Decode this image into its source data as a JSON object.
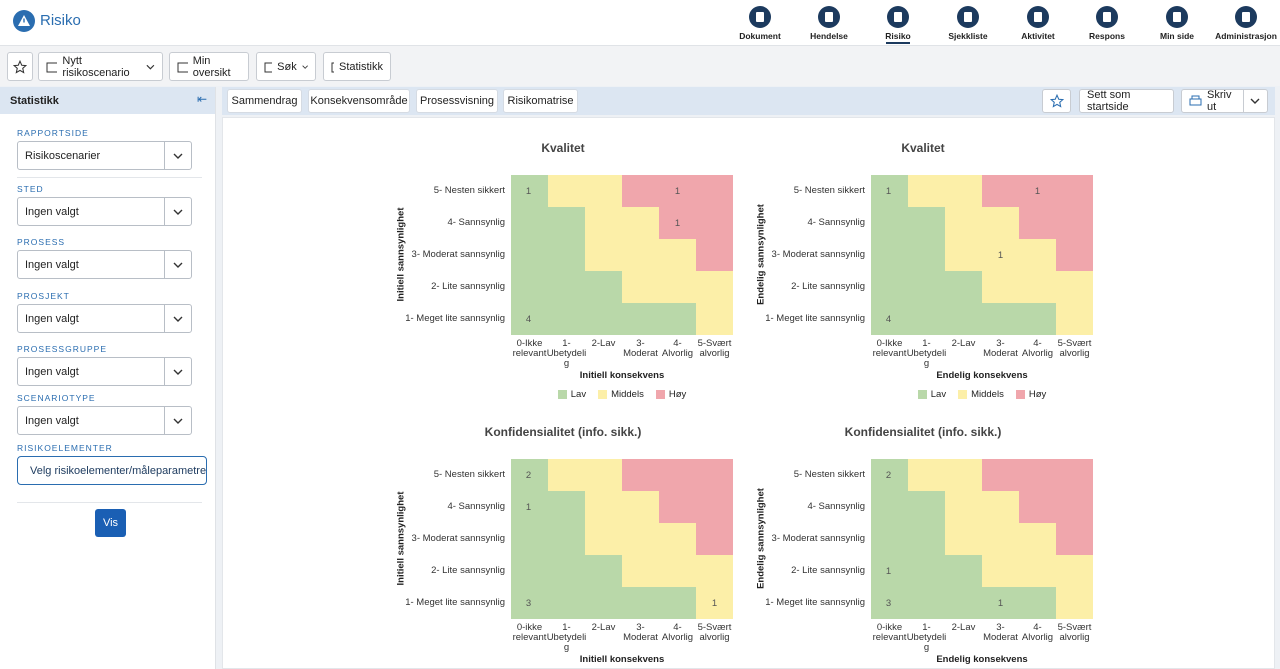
{
  "header": {
    "app_name": "Risiko",
    "nav": [
      "Dokument",
      "Hendelse",
      "Risiko",
      "Sjekkliste",
      "Aktivitet",
      "Respons",
      "Min side",
      "Administrasjon"
    ]
  },
  "toolbar": {
    "buttons": [
      "Nytt risikoscenario",
      "Min oversikt",
      "Søk",
      "Statistikk"
    ]
  },
  "sidebar": {
    "title": "Statistikk",
    "filters": [
      {
        "label": "RAPPORTSIDE",
        "value": "Risikoscenarier"
      },
      {
        "label": "STED",
        "value": "Ingen valgt"
      },
      {
        "label": "PROSESS",
        "value": "Ingen valgt"
      },
      {
        "label": "PROSJEKT",
        "value": "Ingen valgt"
      },
      {
        "label": "PROSESSGRUPPE",
        "value": "Ingen valgt"
      },
      {
        "label": "SCENARIOTYPE",
        "value": "Ingen valgt"
      }
    ],
    "elements_label": "RISIKOELEMENTER",
    "elements_button": "Velg risikoelementer/måleparametre",
    "submit": "Vis"
  },
  "tabs": [
    "Sammendrag",
    "Konsekvensområde",
    "Prosessvisning",
    "Risikomatrise"
  ],
  "actions": [
    "Sett som startside",
    "Skriv ut"
  ],
  "legend": [
    {
      "name": "Lav",
      "color": "#b9d8a9"
    },
    {
      "name": "Middels",
      "color": "#fcefa8"
    },
    {
      "name": "Høy",
      "color": "#f0a6ac"
    }
  ],
  "risk_levels": [
    [
      0,
      1,
      1,
      2,
      2,
      2
    ],
    [
      0,
      0,
      1,
      1,
      2,
      2
    ],
    [
      0,
      0,
      1,
      1,
      1,
      2
    ],
    [
      0,
      0,
      0,
      1,
      1,
      1
    ],
    [
      0,
      0,
      0,
      0,
      0,
      1
    ]
  ],
  "matrices": [
    {
      "title": "Kvalitet",
      "y_label": "Initiell sannsynlighet",
      "x_label": "Initiell konsekvens",
      "rows": [
        "5- Nesten sikkert",
        "4- Sannsynlig",
        "3- Moderat sannsynlig",
        "2- Lite sannsynlig",
        "1- Meget lite sannsynlig"
      ],
      "columns": [
        "0-Ikke relevant",
        "1- Ubetydelig",
        "2-Lav",
        "3- Moderat",
        "4- Alvorlig",
        "5-Svært alvorlig"
      ],
      "counts": [
        [
          1,
          null,
          null,
          null,
          1,
          null
        ],
        [
          null,
          null,
          null,
          null,
          1,
          null
        ],
        [
          null,
          null,
          null,
          null,
          null,
          null
        ],
        [
          null,
          null,
          null,
          null,
          null,
          null
        ],
        [
          4,
          null,
          null,
          null,
          null,
          null
        ]
      ]
    },
    {
      "title": "Kvalitet",
      "y_label": "Endelig sannsynlighet",
      "x_label": "Endelig konsekvens",
      "rows": [
        "5- Nesten sikkert",
        "4- Sannsynlig",
        "3- Moderat sannsynlig",
        "2- Lite sannsynlig",
        "1- Meget lite sannsynlig"
      ],
      "columns": [
        "0-Ikke relevant",
        "1- Ubetydelig",
        "2-Lav",
        "3- Moderat",
        "4- Alvorlig",
        "5-Svært alvorlig"
      ],
      "counts": [
        [
          1,
          null,
          null,
          null,
          1,
          null
        ],
        [
          null,
          null,
          null,
          null,
          null,
          null
        ],
        [
          null,
          null,
          null,
          1,
          null,
          null
        ],
        [
          null,
          null,
          null,
          null,
          null,
          null
        ],
        [
          4,
          null,
          null,
          null,
          null,
          null
        ]
      ]
    },
    {
      "title": "Konfidensialitet (info. sikk.)",
      "y_label": "Initiell sannsynlighet",
      "x_label": "Initiell konsekvens",
      "rows": [
        "5- Nesten sikkert",
        "4- Sannsynlig",
        "3- Moderat sannsynlig",
        "2- Lite sannsynlig",
        "1- Meget lite sannsynlig"
      ],
      "columns": [
        "0-ikke relevant",
        "1- Ubetydelig",
        "2-Lav",
        "3- Moderat",
        "4- Alvorlig",
        "5-Svært alvorlig"
      ],
      "counts": [
        [
          2,
          null,
          null,
          null,
          null,
          null
        ],
        [
          1,
          null,
          null,
          null,
          null,
          null
        ],
        [
          null,
          null,
          null,
          null,
          null,
          null
        ],
        [
          null,
          null,
          null,
          null,
          null,
          null
        ],
        [
          3,
          null,
          null,
          null,
          null,
          1
        ]
      ]
    },
    {
      "title": "Konfidensialitet (info. sikk.)",
      "y_label": "Endelig sannsynlighet",
      "x_label": "Endelig konsekvens",
      "rows": [
        "5- Nesten sikkert",
        "4- Sannsynlig",
        "3- Moderat sannsynlig",
        "2- Lite sannsynlig",
        "1- Meget lite sannsynlig"
      ],
      "columns": [
        "0-ikke relevant",
        "1- Ubetydelig",
        "2-Lav",
        "3- Moderat",
        "4- Alvorlig",
        "5-Svært alvorlig"
      ],
      "counts": [
        [
          2,
          null,
          null,
          null,
          null,
          null
        ],
        [
          null,
          null,
          null,
          null,
          null,
          null
        ],
        [
          null,
          null,
          null,
          null,
          null,
          null
        ],
        [
          1,
          null,
          null,
          null,
          null,
          null
        ],
        [
          3,
          null,
          null,
          1,
          null,
          null
        ]
      ]
    }
  ]
}
